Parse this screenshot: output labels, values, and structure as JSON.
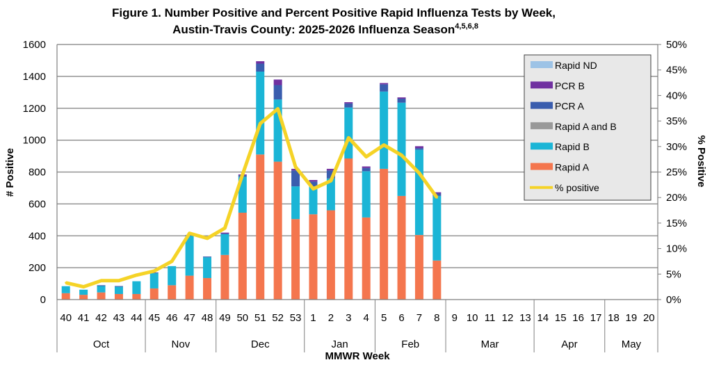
{
  "chart_data": {
    "type": "bar",
    "stacked": true,
    "title_line1": "Figure 1. Number Positive and Percent Positive Rapid Influenza Tests by Week,",
    "title_line2": "Austin-Travis County:  2025-2026 Influenza Season",
    "title_superscript": "4,5,6,8",
    "xlabel": "MMWR Week",
    "ylabel": "# Positive",
    "y2label": "% Positive",
    "ylim": [
      0,
      1600
    ],
    "y2lim": [
      0,
      50
    ],
    "yticks": [
      "0",
      "200",
      "400",
      "600",
      "800",
      "1000",
      "1200",
      "1400",
      "1600"
    ],
    "y2ticks": [
      "0%",
      "5%",
      "10%",
      "15%",
      "20%",
      "25%",
      "30%",
      "35%",
      "40%",
      "45%",
      "50%"
    ],
    "grid": true,
    "legend_position": "top-right",
    "categories": [
      "40",
      "41",
      "42",
      "43",
      "44",
      "45",
      "46",
      "47",
      "48",
      "49",
      "50",
      "51",
      "52",
      "53",
      "1",
      "2",
      "3",
      "4",
      "5",
      "6",
      "7",
      "8",
      "9",
      "10",
      "11",
      "12",
      "13",
      "14",
      "15",
      "16",
      "17",
      "18",
      "19",
      "20"
    ],
    "months": [
      {
        "label": "Oct",
        "span": 5
      },
      {
        "label": "Nov",
        "span": 4
      },
      {
        "label": "Dec",
        "span": 5
      },
      {
        "label": "Jan",
        "span": 4
      },
      {
        "label": "Feb",
        "span": 4
      },
      {
        "label": "Mar",
        "span": 5
      },
      {
        "label": "Apr",
        "span": 4
      },
      {
        "label": "May",
        "span": 3
      }
    ],
    "series": [
      {
        "name": "Rapid A",
        "color": "#F4764E",
        "values": [
          40,
          30,
          45,
          35,
          35,
          70,
          90,
          150,
          135,
          280,
          545,
          910,
          865,
          505,
          535,
          560,
          885,
          515,
          820,
          650,
          405,
          245,
          null,
          null,
          null,
          null,
          null,
          null,
          null,
          null,
          null,
          null,
          null,
          null
        ]
      },
      {
        "name": "Rapid B",
        "color": "#1BB5D6",
        "values": [
          44,
          32,
          40,
          45,
          80,
          95,
          120,
          250,
          130,
          130,
          225,
          520,
          390,
          205,
          175,
          200,
          320,
          290,
          485,
          585,
          535,
          405,
          null,
          null,
          null,
          null,
          null,
          null,
          null,
          null,
          null,
          null,
          null,
          null
        ]
      },
      {
        "name": "Rapid A and B",
        "color": "#999999",
        "values": [
          0,
          0,
          0,
          0,
          0,
          0,
          0,
          0,
          0,
          0,
          0,
          0,
          0,
          0,
          0,
          0,
          0,
          0,
          0,
          0,
          0,
          0,
          null,
          null,
          null,
          null,
          null,
          null,
          null,
          null,
          null,
          null,
          null,
          null
        ]
      },
      {
        "name": "PCR A",
        "color": "#3A5DAE",
        "values": [
          0,
          0,
          5,
          5,
          0,
          5,
          0,
          5,
          5,
          5,
          10,
          50,
          90,
          100,
          30,
          50,
          25,
          20,
          45,
          25,
          10,
          15,
          null,
          null,
          null,
          null,
          null,
          null,
          null,
          null,
          null,
          null,
          null,
          null
        ]
      },
      {
        "name": "PCR B",
        "color": "#7030A0",
        "values": [
          0,
          0,
          0,
          0,
          0,
          0,
          0,
          0,
          0,
          5,
          5,
          15,
          35,
          10,
          10,
          10,
          8,
          10,
          8,
          8,
          12,
          8,
          null,
          null,
          null,
          null,
          null,
          null,
          null,
          null,
          null,
          null,
          null,
          null
        ]
      },
      {
        "name": "Rapid ND",
        "color": "#9DC3E6",
        "values": [
          0,
          0,
          0,
          0,
          0,
          0,
          0,
          0,
          0,
          0,
          0,
          0,
          0,
          0,
          0,
          0,
          0,
          0,
          0,
          0,
          0,
          0,
          null,
          null,
          null,
          null,
          null,
          null,
          null,
          null,
          null,
          null,
          null,
          null
        ]
      }
    ],
    "line_series": {
      "name": "% positive",
      "color": "#F5D327",
      "axis": "right",
      "values": [
        3.3,
        2.5,
        3.7,
        3.7,
        4.8,
        5.6,
        7.5,
        13.0,
        12.0,
        14.0,
        24.5,
        34.5,
        37.4,
        26.0,
        21.7,
        23.3,
        31.7,
        28.0,
        30.3,
        28.3,
        24.8,
        20.0,
        null,
        null,
        null,
        null,
        null,
        null,
        null,
        null,
        null,
        null,
        null,
        null
      ]
    },
    "legend_order": [
      "Rapid ND",
      "PCR B",
      "PCR A",
      "Rapid A and B",
      "Rapid B",
      "Rapid A",
      "% positive"
    ]
  }
}
